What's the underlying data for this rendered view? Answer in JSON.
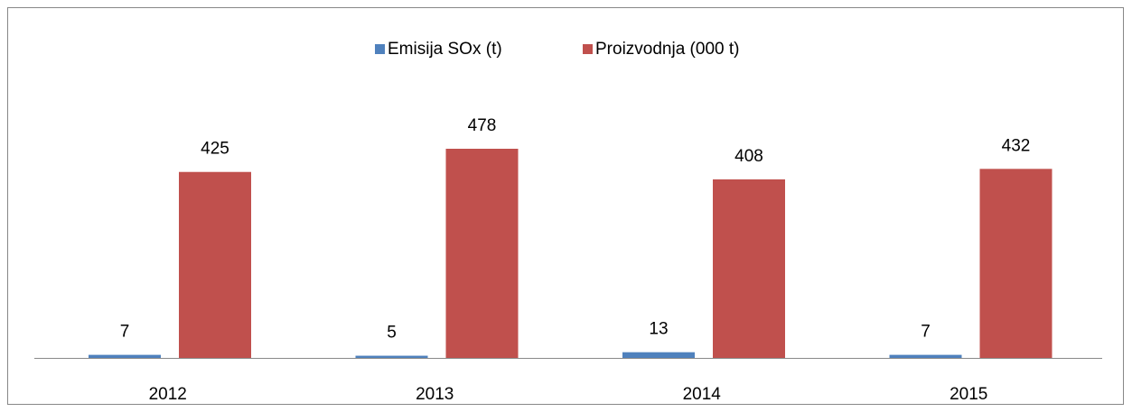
{
  "chart_data": {
    "type": "bar",
    "categories": [
      "2012",
      "2013",
      "2014",
      "2015"
    ],
    "series": [
      {
        "name": "Emisija SOx (t)",
        "color": "#4f81bd",
        "values": [
          7,
          5,
          13,
          7
        ]
      },
      {
        "name": "Proizvodnja (000 t)",
        "color": "#c0504d",
        "values": [
          425,
          478,
          408,
          432
        ]
      }
    ],
    "legend": "top"
  }
}
